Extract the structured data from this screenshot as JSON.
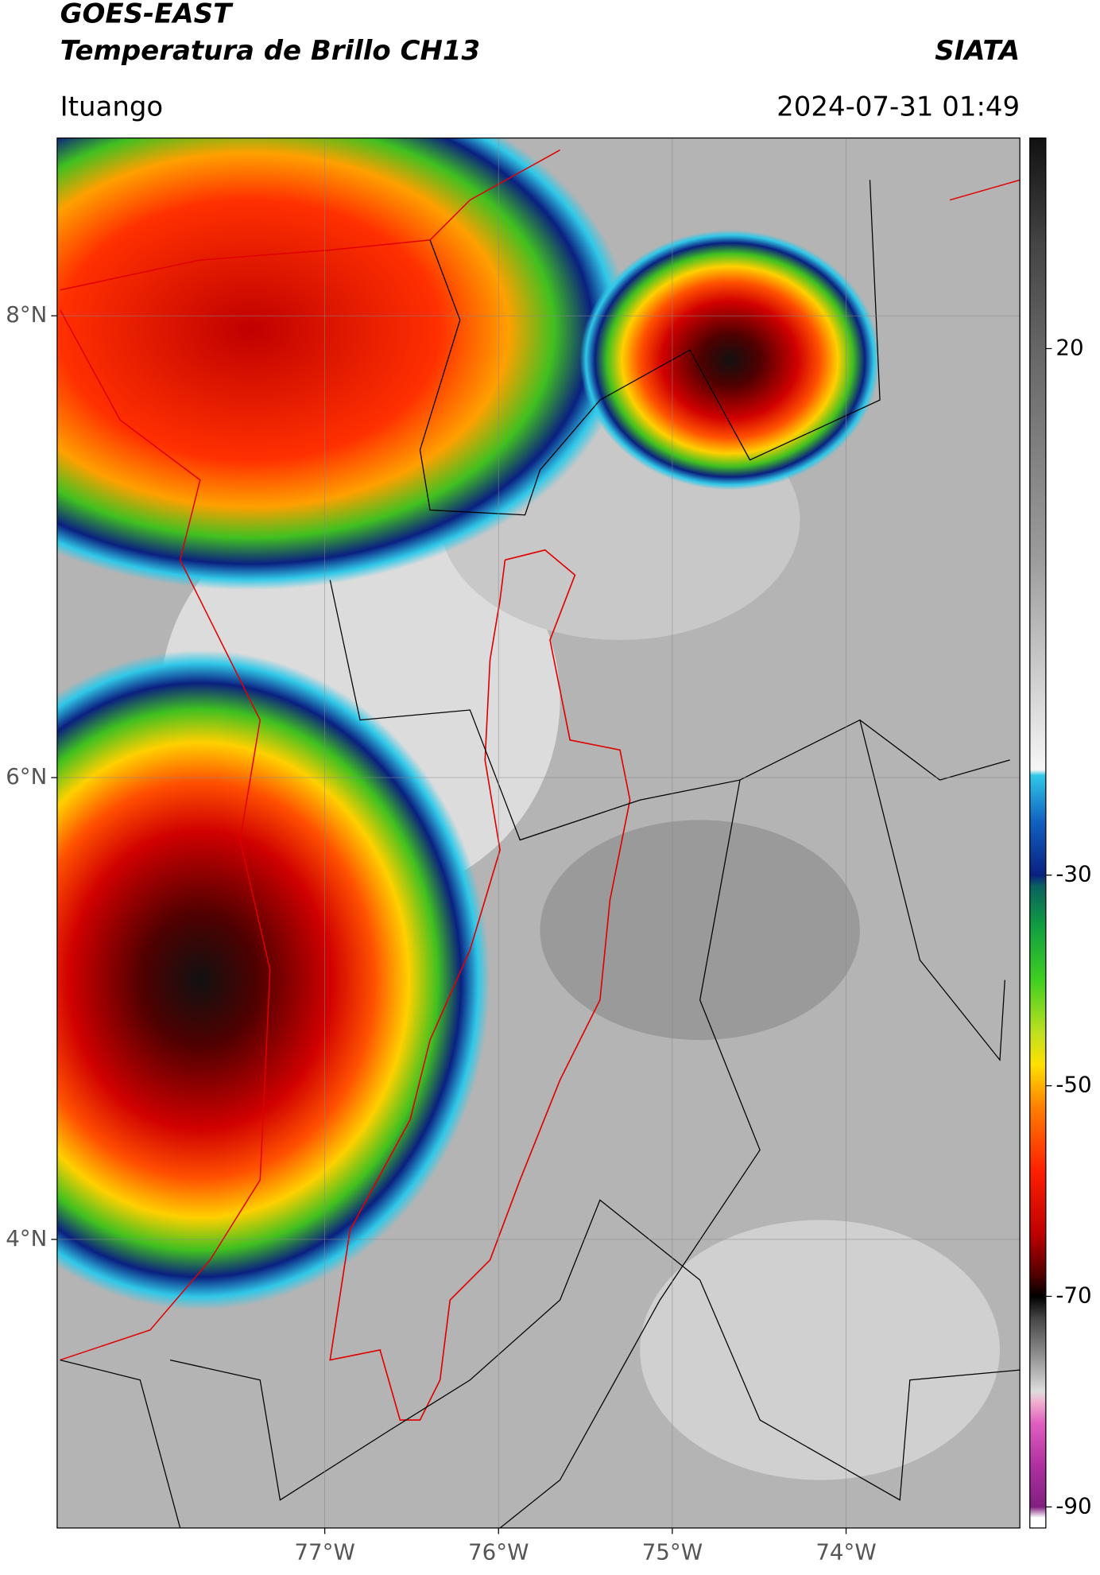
{
  "header": {
    "title": "GOES-EAST",
    "subtitle": "Temperatura de Brillo CH13",
    "source": "SIATA",
    "region": "Ituango",
    "timestamp": "2024-07-31 01:49"
  },
  "map": {
    "xlim": [
      -78.54,
      -73.0
    ],
    "ylim": [
      2.75,
      8.77
    ],
    "xticks": [
      {
        "value": -77,
        "label": "77°W"
      },
      {
        "value": -76,
        "label": "76°W"
      },
      {
        "value": -75,
        "label": "75°W"
      },
      {
        "value": -74,
        "label": "74°W"
      }
    ],
    "yticks": [
      {
        "value": 8,
        "label": "8°N"
      },
      {
        "value": 6,
        "label": "6°N"
      },
      {
        "value": 4,
        "label": "4°N"
      }
    ],
    "grid": true
  },
  "colorbar": {
    "lim": [
      -92,
      40
    ],
    "ticks": [
      20,
      -30,
      -50,
      -70,
      -90
    ],
    "colormap": [
      {
        "value": 40,
        "color": "#111111"
      },
      {
        "value": 30,
        "color": "#444444"
      },
      {
        "value": 20,
        "color": "#666666"
      },
      {
        "value": 0,
        "color": "#9c9c9c"
      },
      {
        "value": -20,
        "color": "#f6f6f6"
      },
      {
        "value": -20.5,
        "color": "#30c8e8"
      },
      {
        "value": -25,
        "color": "#1060c0"
      },
      {
        "value": -30,
        "color": "#0a2080"
      },
      {
        "value": -31,
        "color": "#0a6060"
      },
      {
        "value": -35,
        "color": "#10a040"
      },
      {
        "value": -40,
        "color": "#40d020"
      },
      {
        "value": -45,
        "color": "#c0e020"
      },
      {
        "value": -48,
        "color": "#ffe000"
      },
      {
        "value": -52,
        "color": "#ff8000"
      },
      {
        "value": -58,
        "color": "#ff2000"
      },
      {
        "value": -64,
        "color": "#c00000"
      },
      {
        "value": -68,
        "color": "#500000"
      },
      {
        "value": -70,
        "color": "#000000"
      },
      {
        "value": -72,
        "color": "#444444"
      },
      {
        "value": -76,
        "color": "#999999"
      },
      {
        "value": -79,
        "color": "#dddddd"
      },
      {
        "value": -80,
        "color": "#f0b0d0"
      },
      {
        "value": -82,
        "color": "#e060c0"
      },
      {
        "value": -86,
        "color": "#b030a0"
      },
      {
        "value": -90,
        "color": "#802080"
      },
      {
        "value": -91,
        "color": "#ffffff"
      }
    ]
  }
}
